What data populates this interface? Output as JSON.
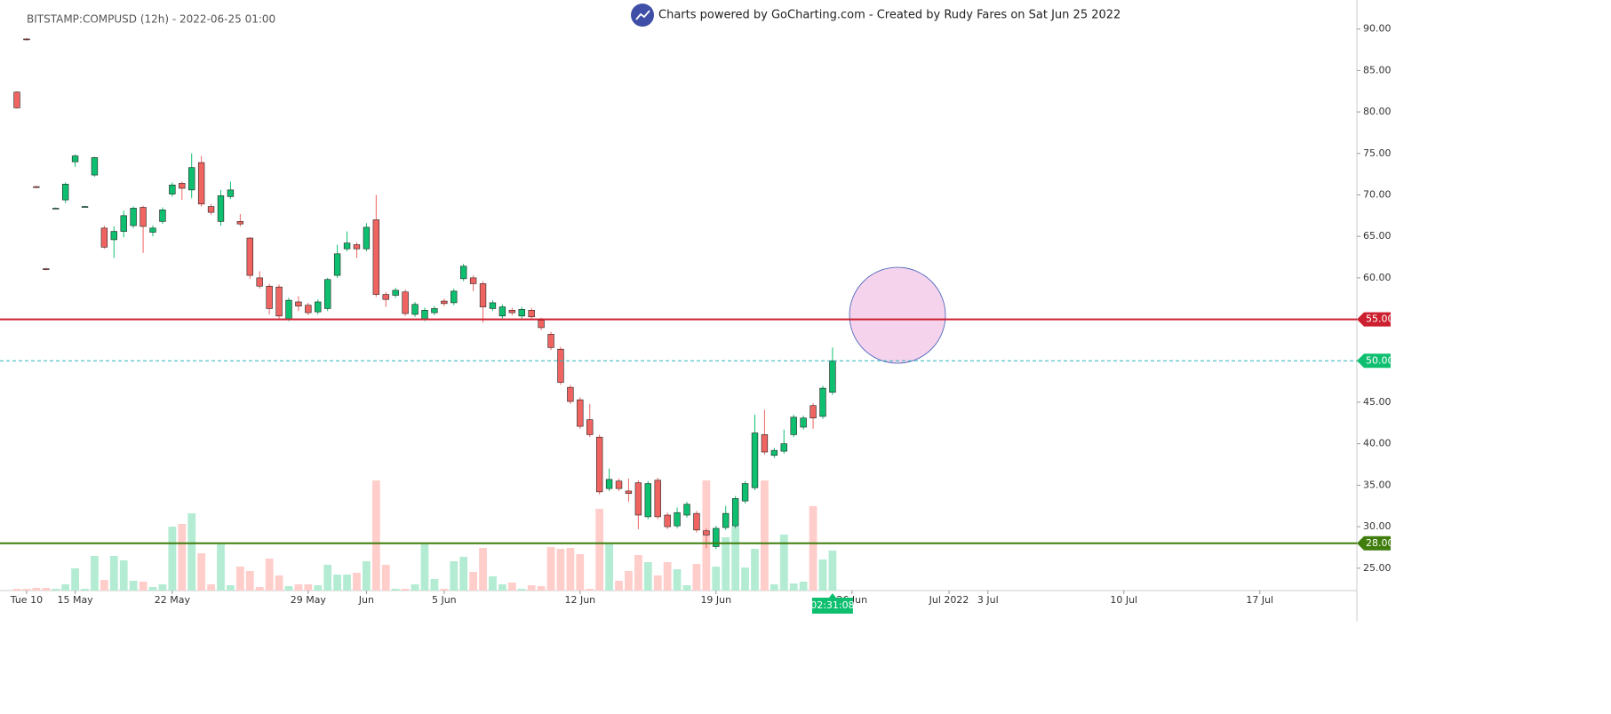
{
  "chart_data": {
    "type": "candlestick",
    "title": "BITSTAMP:COMPUSD (12h) - 2022-06-25 01:00",
    "subtitle": "Charts powered by GoCharting.com - Created by Rudy Fares on Sat Jun 25 2022",
    "up_color": "#0fbf70",
    "down_color": "#ef6461",
    "volume_up_color": "#b3ecd3",
    "volume_down_color": "#ffcdca",
    "xlim": [
      -1.74,
      138
    ],
    "ylim": [
      22.3,
      93.5
    ],
    "volume_lim": [
      0,
      130
    ],
    "yticks": [
      {
        "value": 25,
        "label": "25.00"
      },
      {
        "value": 30,
        "label": "30.00"
      },
      {
        "value": 35,
        "label": "35.00"
      },
      {
        "value": 40,
        "label": "40.00"
      },
      {
        "value": 45,
        "label": "45.00"
      },
      {
        "value": 50,
        "label": "50.00"
      },
      {
        "value": 55,
        "label": "55.00"
      },
      {
        "value": 60,
        "label": "60.00"
      },
      {
        "value": 65,
        "label": "65.00"
      },
      {
        "value": 70,
        "label": "70.00"
      },
      {
        "value": 75,
        "label": "75.00"
      },
      {
        "value": 80,
        "label": "80.00"
      },
      {
        "value": 85,
        "label": "85.00"
      },
      {
        "value": 90,
        "label": "90.00"
      }
    ],
    "xticks": [
      {
        "value": 1,
        "label": "Tue 10"
      },
      {
        "value": 6,
        "label": "15 May"
      },
      {
        "value": 16,
        "label": "22 May"
      },
      {
        "value": 30,
        "label": "29 May"
      },
      {
        "value": 36,
        "label": "Jun"
      },
      {
        "value": 44,
        "label": "5 Jun"
      },
      {
        "value": 58,
        "label": "12 Jun"
      },
      {
        "value": 72,
        "label": "19 Jun"
      },
      {
        "value": 86,
        "label": "26 Jun"
      },
      {
        "value": 96,
        "label": "Jul 2022"
      },
      {
        "value": 100,
        "label": "3 Jul"
      },
      {
        "value": 114,
        "label": "10 Jul"
      },
      {
        "value": 128,
        "label": "17 Jul"
      }
    ],
    "hlines": [
      {
        "value": 55,
        "label": "55.00",
        "color": "#cc1f2f"
      },
      {
        "value": 28,
        "label": "28.00",
        "color": "#3f7d0c"
      }
    ],
    "last_price": {
      "value": 50,
      "label": "50.00",
      "color": "#0fbf70"
    },
    "countdown": "02:31:08",
    "ohlc": [
      [
        82.4,
        82.5,
        80.4,
        80.5
      ],
      [
        88.8,
        88.9,
        88.6,
        88.7
      ],
      [
        71.0,
        71.1,
        70.8,
        70.9
      ],
      [
        61.1,
        61.2,
        60.9,
        61.0
      ],
      [
        68.4,
        68.5,
        68.3,
        68.4
      ],
      [
        69.4,
        71.5,
        69.0,
        71.3
      ],
      [
        74.0,
        74.9,
        73.4,
        74.7
      ],
      [
        68.6,
        68.7,
        68.5,
        68.6
      ],
      [
        72.4,
        74.6,
        72.2,
        74.5
      ],
      [
        66.0,
        66.3,
        63.5,
        63.7
      ],
      [
        64.6,
        66.2,
        62.4,
        65.6
      ],
      [
        65.6,
        68.1,
        64.9,
        67.5
      ],
      [
        66.3,
        68.6,
        66.0,
        68.4
      ],
      [
        68.5,
        68.7,
        63.0,
        66.2
      ],
      [
        65.5,
        66.3,
        65.0,
        66.0
      ],
      [
        66.8,
        68.5,
        66.5,
        68.2
      ],
      [
        70.1,
        71.5,
        69.8,
        71.2
      ],
      [
        71.4,
        71.6,
        69.4,
        70.8
      ],
      [
        70.6,
        75.0,
        69.6,
        73.3
      ],
      [
        73.9,
        74.7,
        68.6,
        68.9
      ],
      [
        68.6,
        68.9,
        67.6,
        67.9
      ],
      [
        66.8,
        70.6,
        66.3,
        69.9
      ],
      [
        69.8,
        71.6,
        69.5,
        70.6
      ],
      [
        66.8,
        67.7,
        66.2,
        66.5
      ],
      [
        64.8,
        64.9,
        59.9,
        60.3
      ],
      [
        60.0,
        60.8,
        58.7,
        59.0
      ],
      [
        59.0,
        59.3,
        55.6,
        56.3
      ],
      [
        58.9,
        59.2,
        55.1,
        55.4
      ],
      [
        55.0,
        57.6,
        54.8,
        57.3
      ],
      [
        57.1,
        57.8,
        56.0,
        56.6
      ],
      [
        56.7,
        57.0,
        55.5,
        55.8
      ],
      [
        55.9,
        57.4,
        55.6,
        57.1
      ],
      [
        56.3,
        60.0,
        56.0,
        59.8
      ],
      [
        60.3,
        64.0,
        60.0,
        62.9
      ],
      [
        63.5,
        65.6,
        63.2,
        64.2
      ],
      [
        64.0,
        64.3,
        62.4,
        63.5
      ],
      [
        63.5,
        66.6,
        63.2,
        66.1
      ],
      [
        67.0,
        70.0,
        57.7,
        58.0
      ],
      [
        58.0,
        58.3,
        56.5,
        57.4
      ],
      [
        57.9,
        58.8,
        57.6,
        58.5
      ],
      [
        58.3,
        58.6,
        55.4,
        55.7
      ],
      [
        55.6,
        57.1,
        55.3,
        56.8
      ],
      [
        55.0,
        56.4,
        54.8,
        56.1
      ],
      [
        55.8,
        56.6,
        55.5,
        56.3
      ],
      [
        57.2,
        57.5,
        56.6,
        56.9
      ],
      [
        57.0,
        58.7,
        56.7,
        58.4
      ],
      [
        59.9,
        61.7,
        59.6,
        61.4
      ],
      [
        60.0,
        60.3,
        58.4,
        59.3
      ],
      [
        59.3,
        59.6,
        54.6,
        56.5
      ],
      [
        56.3,
        57.3,
        56.0,
        57.0
      ],
      [
        55.4,
        56.8,
        55.1,
        56.5
      ],
      [
        56.1,
        56.4,
        55.5,
        55.8
      ],
      [
        55.4,
        56.5,
        55.1,
        56.2
      ],
      [
        56.1,
        56.4,
        55.0,
        55.3
      ],
      [
        54.9,
        55.2,
        53.7,
        54.0
      ],
      [
        53.2,
        53.5,
        51.3,
        51.6
      ],
      [
        51.4,
        51.7,
        47.1,
        47.4
      ],
      [
        46.8,
        47.1,
        44.8,
        45.1
      ],
      [
        45.3,
        45.6,
        41.8,
        42.1
      ],
      [
        42.9,
        44.8,
        40.8,
        41.1
      ],
      [
        40.8,
        41.1,
        33.9,
        34.2
      ],
      [
        34.6,
        37.0,
        34.3,
        35.7
      ],
      [
        35.5,
        35.8,
        34.3,
        34.6
      ],
      [
        34.3,
        35.8,
        33.0,
        34.0
      ],
      [
        35.3,
        35.6,
        29.7,
        31.4
      ],
      [
        31.2,
        35.5,
        30.9,
        35.2
      ],
      [
        35.6,
        35.9,
        30.9,
        31.2
      ],
      [
        31.4,
        31.7,
        29.7,
        30.0
      ],
      [
        30.1,
        32.3,
        29.8,
        31.7
      ],
      [
        31.4,
        33.0,
        31.1,
        32.7
      ],
      [
        31.6,
        31.9,
        29.3,
        29.6
      ],
      [
        29.5,
        29.8,
        27.4,
        29.0
      ],
      [
        27.6,
        30.1,
        27.3,
        29.8
      ],
      [
        29.9,
        32.5,
        29.6,
        31.6
      ],
      [
        30.1,
        33.7,
        29.8,
        33.4
      ],
      [
        33.1,
        35.5,
        32.8,
        35.2
      ],
      [
        34.7,
        43.5,
        34.4,
        41.3
      ],
      [
        41.1,
        44.1,
        38.7,
        39.0
      ],
      [
        38.6,
        39.5,
        38.3,
        39.2
      ],
      [
        39.1,
        41.7,
        38.8,
        40.0
      ],
      [
        41.1,
        43.5,
        40.8,
        43.2
      ],
      [
        42.0,
        43.4,
        41.7,
        43.1
      ],
      [
        44.6,
        44.9,
        41.8,
        43.1
      ],
      [
        43.3,
        47.0,
        43.0,
        46.7
      ],
      [
        46.2,
        51.6,
        45.9,
        50.0
      ]
    ],
    "volume": [
      2,
      2,
      3,
      3,
      2,
      7,
      25,
      2,
      39,
      12,
      39,
      34,
      11,
      10,
      4,
      7,
      72,
      75,
      87,
      42,
      7,
      52,
      6,
      27,
      22,
      4,
      36,
      17,
      5,
      7,
      7,
      6,
      29,
      18,
      18,
      20,
      33,
      124,
      29,
      2,
      2,
      7,
      52,
      13,
      2,
      33,
      38,
      21,
      48,
      16,
      7,
      9,
      2,
      6,
      5,
      49,
      47,
      48,
      41,
      2,
      92,
      52,
      11,
      22,
      40,
      32,
      17,
      32,
      24,
      6,
      30,
      124,
      27,
      60,
      72,
      26,
      47,
      124,
      7,
      63,
      8,
      10,
      95,
      35,
      45
    ]
  }
}
